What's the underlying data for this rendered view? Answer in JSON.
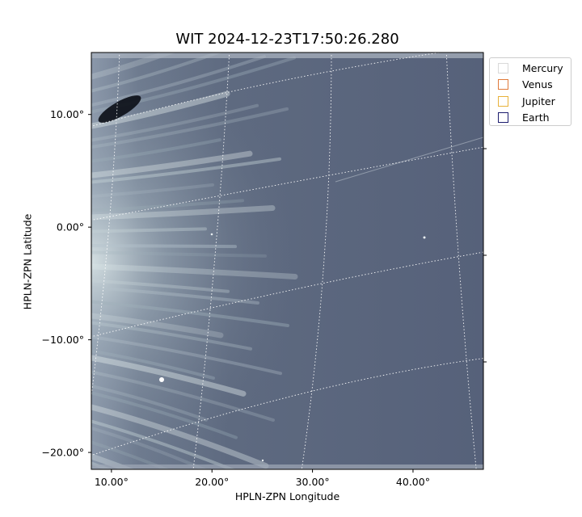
{
  "chart_data": {
    "type": "heatmap",
    "title": "WIT 2024-12-23T17:50:26.280",
    "xlabel": "HPLN-ZPN Longitude",
    "ylabel": "HPLN-ZPN Latitude",
    "x_ticks": [
      {
        "value": 10,
        "label": "10.00°"
      },
      {
        "value": 20,
        "label": "20.00°"
      },
      {
        "value": 30,
        "label": "30.00°"
      },
      {
        "value": 40,
        "label": "40.00°"
      }
    ],
    "y_ticks": [
      {
        "value": 10,
        "label": "10.00°"
      },
      {
        "value": 0,
        "label": "0.00°"
      },
      {
        "value": -10,
        "label": "-10.00°"
      },
      {
        "value": -20,
        "label": "-20.00°"
      }
    ],
    "xlim": [
      8,
      47
    ],
    "ylim": [
      -21.5,
      15.5
    ],
    "grid": "on (dotted white, curved)",
    "colormap": "bone (grey-blue)",
    "legend": [
      {
        "name": "Mercury",
        "color": "#d9d9d9"
      },
      {
        "name": "Venus",
        "color": "#e07a3a"
      },
      {
        "name": "Jupiter",
        "color": "#e8b23a"
      },
      {
        "name": "Earth",
        "color": "#1c1c6e"
      }
    ],
    "legend_position": "outside upper right"
  }
}
